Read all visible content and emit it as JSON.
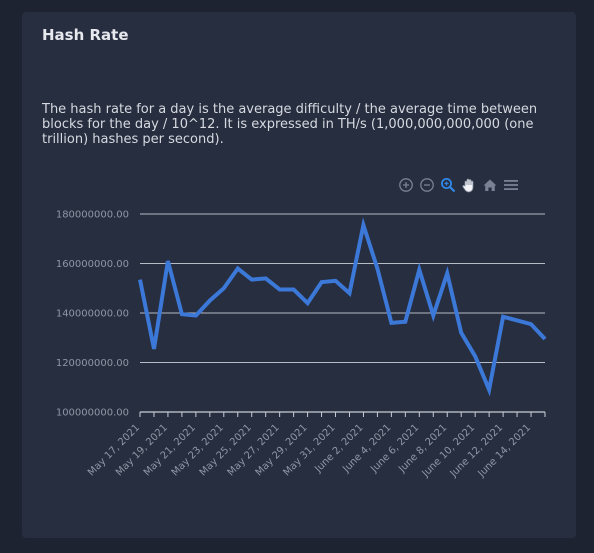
{
  "card": {
    "title": "Hash Rate",
    "description": "The hash rate for a day is the average difficulty / the average time between blocks for the day / 10^12. It is expressed in TH/s (1,000,000,000,000 (one trillion) hashes per second)."
  },
  "toolbar": {
    "icons": [
      "zoom-in-icon",
      "zoom-out-icon",
      "selection-zoom-icon",
      "pan-hand-icon",
      "reset-home-icon",
      "menu-icon"
    ]
  },
  "colors": {
    "line": "#3b78d8",
    "grid": "#d0d4dc",
    "active_tool": "#2f87e8",
    "inactive_tool": "#7a8194"
  },
  "chart_data": {
    "type": "line",
    "title": "",
    "xlabel": "",
    "ylabel": "",
    "ylim": [
      100000000,
      180000000
    ],
    "y_ticks": [
      "100000000.00",
      "120000000.00",
      "140000000.00",
      "160000000.00",
      "180000000.00"
    ],
    "x_tick_labels": [
      "May 17, 2021",
      "May 19, 2021",
      "May 21, 2021",
      "May 23, 2021",
      "May 25, 2021",
      "May 27, 2021",
      "May 29, 2021",
      "May 31, 2021",
      "June 2, 2021",
      "June 4, 2021",
      "June 6, 2021",
      "June 8, 2021",
      "June 10, 2021",
      "June 12, 2021",
      "June 14, 2021"
    ],
    "x": [
      "May 17, 2021",
      "May 18, 2021",
      "May 19, 2021",
      "May 20, 2021",
      "May 21, 2021",
      "May 22, 2021",
      "May 23, 2021",
      "May 24, 2021",
      "May 25, 2021",
      "May 26, 2021",
      "May 27, 2021",
      "May 28, 2021",
      "May 29, 2021",
      "May 30, 2021",
      "May 31, 2021",
      "June 1, 2021",
      "June 2, 2021",
      "June 3, 2021",
      "June 4, 2021",
      "June 5, 2021",
      "June 6, 2021",
      "June 7, 2021",
      "June 8, 2021",
      "June 9, 2021",
      "June 10, 2021",
      "June 11, 2021",
      "June 12, 2021",
      "June 13, 2021",
      "June 14, 2021",
      "June 15, 2021"
    ],
    "series": [
      {
        "values": [
          153500000,
          125500000,
          161000000,
          139500000,
          139000000,
          145000000,
          150000000,
          158000000,
          153500000,
          154000000,
          149500000,
          149500000,
          144000000,
          152500000,
          153000000,
          148000000,
          175500000,
          158000000,
          136000000,
          136500000,
          157500000,
          139000000,
          156000000,
          132000000,
          122500000,
          109000000,
          138500000,
          137000000,
          135500000,
          129500000
        ]
      }
    ],
    "grid": true,
    "legend": "none"
  }
}
